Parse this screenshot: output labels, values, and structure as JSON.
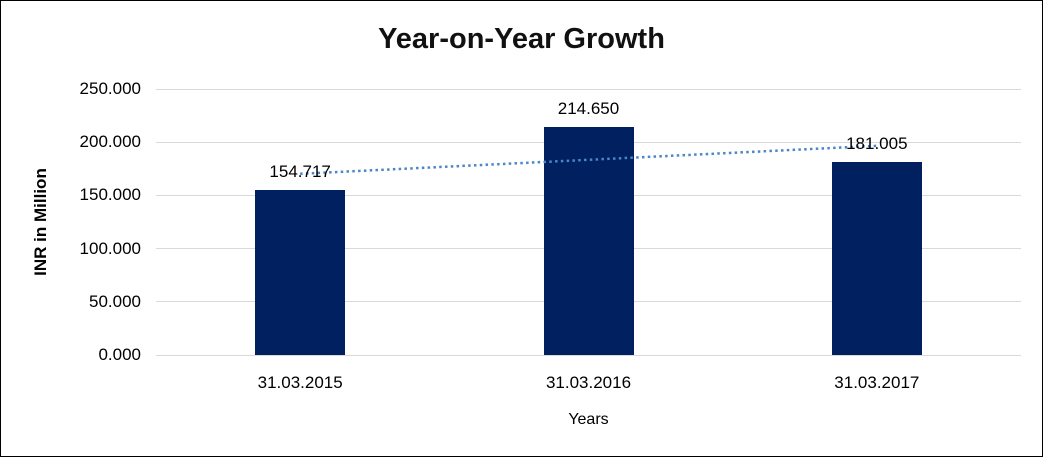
{
  "chart": {
    "title": "Year-on-Year Growth",
    "y_axis_title": "INR in Million",
    "x_axis_title": "Years"
  },
  "chart_data": {
    "type": "bar",
    "title": "Year-on-Year Growth",
    "xlabel": "Years",
    "ylabel": "INR in Million",
    "categories": [
      "31.03.2015",
      "31.03.2016",
      "31.03.2017"
    ],
    "values": [
      154.717,
      214.65,
      181.005
    ],
    "data_labels": [
      "154.717",
      "214.650",
      "181.005"
    ],
    "y_ticks": [
      {
        "value": 0,
        "label": "0.000"
      },
      {
        "value": 50,
        "label": "50.000"
      },
      {
        "value": 100,
        "label": "100.000"
      },
      {
        "value": 150,
        "label": "150.000"
      },
      {
        "value": 200,
        "label": "200.000"
      },
      {
        "value": 250,
        "label": "250.000"
      }
    ],
    "ylim": [
      0,
      250
    ],
    "grid": true,
    "legend": false,
    "trendline": {
      "type": "linear",
      "style": "dotted"
    },
    "colors": {
      "bar": "#002060",
      "trendline": "#4a86c8",
      "gridline": "#d9d9d9",
      "text": "#000000"
    }
  }
}
